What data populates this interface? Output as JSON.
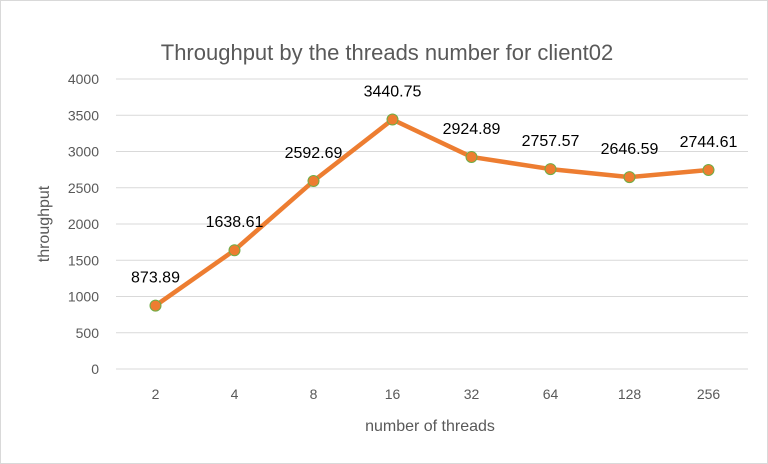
{
  "chart_data": {
    "type": "line",
    "title": "Throughput by the threads number for client02",
    "xlabel": "number of threads",
    "ylabel": "throughput",
    "categories": [
      "2",
      "4",
      "8",
      "16",
      "32",
      "64",
      "128",
      "256"
    ],
    "series": [
      {
        "values": [
          873.89,
          1638.61,
          2592.69,
          3440.75,
          2924.89,
          2757.57,
          2646.59,
          2744.61
        ],
        "labels": [
          "873.89",
          "1638.61",
          "2592.69",
          "3440.75",
          "2924.89",
          "2757.57",
          "2646.59",
          "2744.61"
        ],
        "color": "#ed7d31",
        "marker_edge_color": "#70ad47"
      }
    ],
    "ylim": [
      0,
      4000
    ],
    "yticks": [
      "0",
      "500",
      "1000",
      "1500",
      "2000",
      "2500",
      "3000",
      "3500",
      "4000"
    ],
    "grid": true,
    "gridline_color": "#d9d9d9",
    "legend": "none"
  }
}
